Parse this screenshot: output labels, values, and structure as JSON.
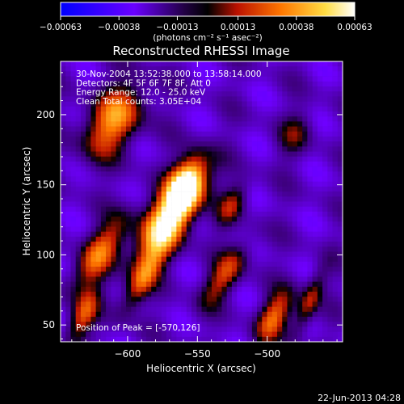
{
  "chart_data": {
    "type": "heatmap",
    "title": "Reconstructed RHESSI Image",
    "xlabel": "Heliocentric X (arcsec)",
    "ylabel": "Heliocentric Y (arcsec)",
    "xlim": [
      -648,
      -446
    ],
    "ylim": [
      38,
      238
    ],
    "x_ticks": [
      -600,
      -550,
      -500
    ],
    "x_tick_labels": [
      "−600",
      "−550",
      "−500"
    ],
    "y_ticks": [
      50,
      100,
      150,
      200
    ],
    "y_tick_labels": [
      "50",
      "100",
      "150",
      "200"
    ],
    "colorbar": {
      "min": -0.00063,
      "max": 0.00063,
      "ticks": [
        -0.00063,
        -0.00038,
        -0.00013,
        0.00013,
        0.00038,
        0.00063
      ],
      "tick_labels": [
        "−0.00063",
        "−0.00038",
        "−0.00013",
        "0.00013",
        "0.00038",
        "0.00063"
      ],
      "units_label": "(photons cm⁻² s⁻¹ asec⁻²)",
      "position": "top"
    },
    "annotations": [
      "30-Nov-2004 13:52:38.000 to 13:58:14.000",
      "Detectors: 4F 5F 6F 7F 8F, Att 0",
      "Energy Range: 12.0 - 25.0 keV",
      "Clean     Total counts: 3.05E+04"
    ],
    "peak_label": "Position of Peak = [-570,126]",
    "peak": {
      "x": -570,
      "y": 126
    },
    "colormap": [
      "#0000ff",
      "#7a00ff",
      "#000000",
      "#cc2200",
      "#ff8800",
      "#ffffff"
    ]
  },
  "footer": {
    "date": "22-Jun-2013 04:28"
  }
}
